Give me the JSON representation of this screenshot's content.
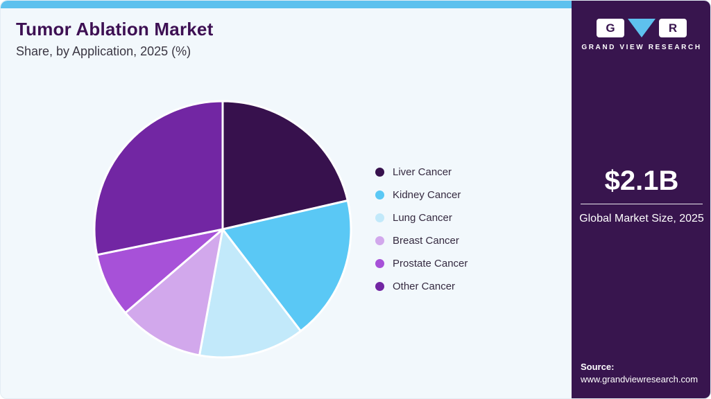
{
  "header": {
    "title": "Tumor Ablation Market",
    "subtitle": "Share, by Application, 2025 (%)"
  },
  "chart_data": {
    "type": "pie",
    "title": "Tumor Ablation Market Share, by Application, 2025 (%)",
    "categories": [
      "Liver Cancer",
      "Kidney Cancer",
      "Lung Cancer",
      "Breast Cancer",
      "Prostate Cancer",
      "Other Cancer"
    ],
    "values": [
      21.4,
      18.2,
      13.3,
      10.8,
      8.1,
      28.2
    ],
    "colors": [
      "#37114d",
      "#5ac8f5",
      "#c2e9fa",
      "#d2a8ec",
      "#a751d8",
      "#7226a3"
    ],
    "start_angle_deg": 0,
    "direction": "clockwise",
    "legend_position": "right",
    "slice_border_color": "#ffffff"
  },
  "sidebar": {
    "logo_letter_g": "G",
    "logo_letter_r": "R",
    "logo_text": "GRAND VIEW RESEARCH",
    "market_size": "$2.1B",
    "market_size_label": "Global Market Size, 2025",
    "source_label": "Source:",
    "source_url": "www.grandviewresearch.com"
  },
  "colors": {
    "accent_bar": "#5ec1ee",
    "canvas_background": "#f2f8fc",
    "sidebar_background": "#38154e",
    "title_text": "#3d1053"
  }
}
